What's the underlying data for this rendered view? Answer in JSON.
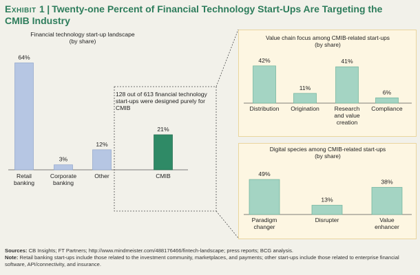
{
  "title": {
    "exhibit": "Exhibit 1",
    "separator": "|",
    "text": "Twenty-one Percent of Financial Technology Start-Ups Are Targeting the CMIB Industry"
  },
  "cmib_note": "128 out of 613 financial technology start-ups were designed purely for CMIB",
  "footer": {
    "sources_label": "Sources:",
    "sources_text": "CB Insights; FT Partners; http://www.mindmeister.com/488176466/fintech-landscape; press reports; BCG analysis.",
    "note_label": "Note:",
    "note_text": "Retail banking start-ups include those related to the investment community, marketplaces, and payments; other start-ups include those related to enterprise financial software, API/connectivity, and insurance."
  },
  "colors": {
    "title": "#2e7d5c",
    "blue_bar": "#b6c6e3",
    "blue_bar_stroke": "#8fa4cb",
    "green_bar": "#2f8a66",
    "green_bar_stroke": "#206b4e",
    "teal_bar": "#a4d4c3",
    "teal_bar_stroke": "#6db29b",
    "panel_bg": "#fdf6e2",
    "panel_border": "#e9d59d"
  },
  "chart_data": [
    {
      "type": "bar",
      "title": "Financial technology start-up landscape",
      "subtitle": "(by share)",
      "categories": [
        "Retail banking",
        "Corporate banking",
        "Other",
        "CMIB"
      ],
      "values": [
        64,
        3,
        12,
        21
      ],
      "labels": [
        "64%",
        "3%",
        "12%",
        "21%"
      ],
      "unit": "%",
      "highlight": "CMIB"
    },
    {
      "type": "bar",
      "title": "Value chain focus among CMIB-related start-ups",
      "subtitle": "(by share)",
      "categories": [
        "Distribution",
        "Origination",
        "Research and value creation",
        "Compliance"
      ],
      "values": [
        42,
        11,
        41,
        6
      ],
      "labels": [
        "42%",
        "11%",
        "41%",
        "6%"
      ],
      "unit": "%"
    },
    {
      "type": "bar",
      "title": "Digital species among CMIB-related start-ups",
      "subtitle": "(by share)",
      "categories": [
        "Paradigm changer",
        "Disrupter",
        "Value enhancer"
      ],
      "values": [
        49,
        13,
        38
      ],
      "labels": [
        "49%",
        "13%",
        "38%"
      ],
      "unit": "%"
    }
  ]
}
